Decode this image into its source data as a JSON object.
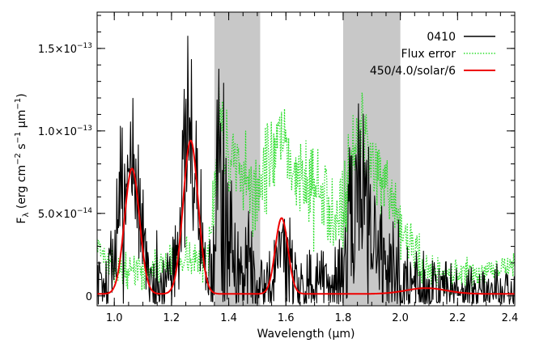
{
  "chart_data": {
    "type": "line",
    "title": "",
    "xlabel": "Wavelength (μm)",
    "ylabel": "Fλ (erg cm⁻² s⁻¹ μm⁻¹)",
    "ylabel_parts": {
      "f": "F",
      "sub": "λ",
      "rest": " (erg cm",
      "sup1": "−2",
      "mid1": " s",
      "sup2": "−1",
      "mid2": " μm",
      "sup3": "−1",
      "end": ")"
    },
    "xlim": [
      0.94,
      2.4
    ],
    "ylim": [
      -6e-15,
      1.72e-13
    ],
    "x_ticks": [
      1.0,
      1.2,
      1.4,
      1.6,
      1.8,
      2.0,
      2.2,
      2.4
    ],
    "x_tick_labels": [
      "1.0",
      "1.2",
      "1.4",
      "1.6",
      "1.8",
      "2.0",
      "2.2",
      "2.4"
    ],
    "y_ticks": [
      0,
      5e-14,
      1e-13,
      1.5e-13
    ],
    "y_tick_labels": [
      {
        "mantissa": "0",
        "exponent": ""
      },
      {
        "mantissa": "5.0×10",
        "exponent": "−14"
      },
      {
        "mantissa": "1.0×10",
        "exponent": "−13"
      },
      {
        "mantissa": "1.5×10",
        "exponent": "−13"
      }
    ],
    "shaded_regions": [
      {
        "x": [
          1.35,
          1.51
        ],
        "color": "#c8c8c8"
      },
      {
        "x": [
          1.8,
          2.0
        ],
        "color": "#c8c8c8"
      }
    ],
    "legend_position": "top-right",
    "series": [
      {
        "name": "0410",
        "color": "#000000",
        "style": "solid",
        "model": "noisy",
        "seed": 7,
        "points": [
          [
            0.94,
            1.2e-14
          ],
          [
            0.97,
            6e-15
          ],
          [
            1.0,
            2.5e-14
          ],
          [
            1.03,
            6e-14
          ],
          [
            1.05,
            8.5e-14
          ],
          [
            1.07,
            8e-14
          ],
          [
            1.09,
            4.5e-14
          ],
          [
            1.12,
            1.2e-14
          ],
          [
            1.16,
            5e-15
          ],
          [
            1.2,
            1.5e-14
          ],
          [
            1.23,
            5e-14
          ],
          [
            1.25,
            8.5e-14
          ],
          [
            1.27,
            9.5e-14
          ],
          [
            1.29,
            6e-14
          ],
          [
            1.31,
            2.5e-14
          ],
          [
            1.33,
            8e-15
          ],
          [
            1.35,
            1e-14
          ],
          [
            1.36,
            9e-14
          ],
          [
            1.37,
            1.2e-13
          ],
          [
            1.38,
            6e-14
          ],
          [
            1.4,
            3e-14
          ],
          [
            1.45,
            1e-14
          ],
          [
            1.5,
            8e-15
          ],
          [
            1.55,
            1e-14
          ],
          [
            1.58,
            3.5e-14
          ],
          [
            1.6,
            2e-14
          ],
          [
            1.65,
            1e-14
          ],
          [
            1.75,
            6e-15
          ],
          [
            1.8,
            1.5e-14
          ],
          [
            1.84,
            5e-14
          ],
          [
            1.86,
            8e-14
          ],
          [
            1.88,
            6e-14
          ],
          [
            1.92,
            3e-14
          ],
          [
            1.96,
            1.5e-14
          ],
          [
            2.0,
            1e-14
          ],
          [
            2.1,
            5e-15
          ],
          [
            2.2,
            4e-15
          ],
          [
            2.3,
            3e-15
          ],
          [
            2.4,
            3e-15
          ]
        ],
        "noise": [
          [
            0.94,
            1e-14
          ],
          [
            1.0,
            1.8e-14
          ],
          [
            1.05,
            3e-14
          ],
          [
            1.1,
            1.5e-14
          ],
          [
            1.2,
            1.5e-14
          ],
          [
            1.26,
            3e-14
          ],
          [
            1.33,
            1.2e-14
          ],
          [
            1.37,
            5e-14
          ],
          [
            1.42,
            2.5e-14
          ],
          [
            1.5,
            1.2e-14
          ],
          [
            1.6,
            1.5e-14
          ],
          [
            1.7,
            1.2e-14
          ],
          [
            1.8,
            1.6e-14
          ],
          [
            1.86,
            3.5e-14
          ],
          [
            1.95,
            2e-14
          ],
          [
            2.05,
            1.2e-14
          ],
          [
            2.2,
            8e-15
          ],
          [
            2.4,
            6e-15
          ]
        ]
      },
      {
        "name": "Flux error",
        "color": "#22dd22",
        "style": "dotted",
        "model": "noisy",
        "seed": 13,
        "points": [
          [
            0.94,
            3.5e-14
          ],
          [
            0.97,
            2e-14
          ],
          [
            1.0,
            1.6e-14
          ],
          [
            1.05,
            1.5e-14
          ],
          [
            1.1,
            1.6e-14
          ],
          [
            1.15,
            1.8e-14
          ],
          [
            1.2,
            2e-14
          ],
          [
            1.25,
            2.5e-14
          ],
          [
            1.3,
            2e-14
          ],
          [
            1.33,
            2.5e-14
          ],
          [
            1.35,
            7e-14
          ],
          [
            1.37,
            1.1e-13
          ],
          [
            1.4,
            8e-14
          ],
          [
            1.45,
            6.5e-14
          ],
          [
            1.5,
            6.5e-14
          ],
          [
            1.55,
            8.5e-14
          ],
          [
            1.58,
            9e-14
          ],
          [
            1.62,
            8e-14
          ],
          [
            1.66,
            7e-14
          ],
          [
            1.7,
            6.5e-14
          ],
          [
            1.75,
            5.5e-14
          ],
          [
            1.8,
            5.5e-14
          ],
          [
            1.84,
            9e-14
          ],
          [
            1.87,
            1e-13
          ],
          [
            1.9,
            8.5e-14
          ],
          [
            1.95,
            6e-14
          ],
          [
            2.0,
            4e-14
          ],
          [
            2.04,
            3e-14
          ],
          [
            2.08,
            1.8e-14
          ],
          [
            2.15,
            1.3e-14
          ],
          [
            2.25,
            1.2e-14
          ],
          [
            2.32,
            1.4e-14
          ],
          [
            2.4,
            2e-14
          ]
        ],
        "noise": [
          [
            0.94,
            4e-15
          ],
          [
            1.3,
            6e-15
          ],
          [
            1.4,
            1.5e-14
          ],
          [
            1.6,
            1.2e-14
          ],
          [
            1.85,
            1.5e-14
          ],
          [
            2.0,
            8e-15
          ],
          [
            2.4,
            3e-15
          ]
        ]
      },
      {
        "name": "450/4.0/solar/6",
        "color": "#ee0000",
        "style": "solid",
        "model": "gaussians",
        "baseline": 1.2e-15,
        "peaks": [
          {
            "center": 1.062,
            "amp": 7.6e-14,
            "sigma": 0.026
          },
          {
            "center": 1.267,
            "amp": 9.3e-14,
            "sigma": 0.026
          },
          {
            "center": 1.585,
            "amp": 4.6e-14,
            "sigma": 0.022
          },
          {
            "center": 2.09,
            "amp": 3.5e-15,
            "sigma": 0.07
          }
        ]
      }
    ]
  }
}
